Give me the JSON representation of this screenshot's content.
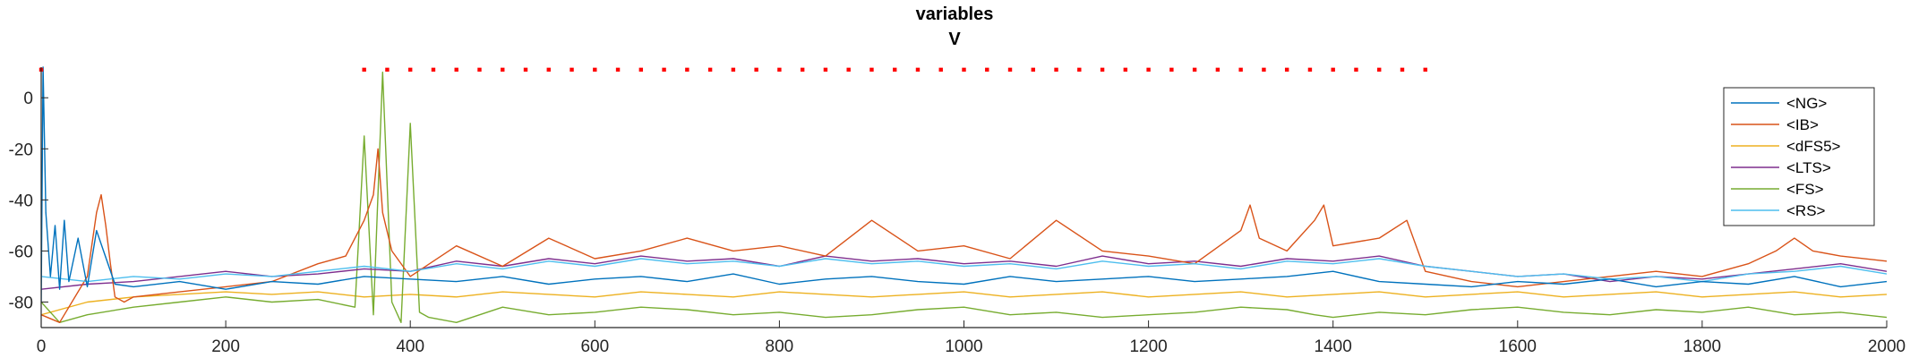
{
  "chart_data": {
    "type": "line",
    "title": "variables",
    "subtitle": "V",
    "xlabel": "",
    "ylabel": "",
    "xlim": [
      0,
      2000
    ],
    "ylim": [
      -90,
      12
    ],
    "xticks": [
      0,
      200,
      400,
      600,
      800,
      1000,
      1200,
      1400,
      1600,
      1800,
      2000
    ],
    "yticks": [
      0,
      -20,
      -40,
      -60,
      -80
    ],
    "grid": false,
    "legend_position": "top-right",
    "series": [
      {
        "name": "<NG>",
        "color": "#0072BD",
        "x": [
          0,
          2,
          5,
          10,
          15,
          20,
          25,
          30,
          40,
          50,
          60,
          80,
          100,
          150,
          200,
          250,
          300,
          350,
          400,
          450,
          500,
          550,
          600,
          650,
          700,
          750,
          800,
          850,
          900,
          950,
          1000,
          1050,
          1100,
          1150,
          1200,
          1250,
          1300,
          1350,
          1400,
          1450,
          1500,
          1550,
          1600,
          1650,
          1700,
          1750,
          1800,
          1850,
          1900,
          1950,
          2000
        ],
        "y": [
          -80,
          12,
          -45,
          -70,
          -50,
          -75,
          -48,
          -72,
          -55,
          -74,
          -52,
          -73,
          -74,
          -72,
          -75,
          -72,
          -73,
          -70,
          -71,
          -72,
          -70,
          -73,
          -71,
          -70,
          -72,
          -69,
          -73,
          -71,
          -70,
          -72,
          -73,
          -70,
          -72,
          -71,
          -70,
          -72,
          -71,
          -70,
          -68,
          -72,
          -73,
          -74,
          -72,
          -73,
          -71,
          -74,
          -72,
          -73,
          -70,
          -74,
          -72
        ],
        "spikes": []
      },
      {
        "name": "<IB>",
        "color": "#D95319",
        "x": [
          0,
          20,
          50,
          60,
          65,
          70,
          75,
          80,
          90,
          100,
          150,
          200,
          250,
          300,
          330,
          350,
          360,
          365,
          370,
          380,
          400,
          450,
          500,
          550,
          600,
          650,
          700,
          750,
          800,
          850,
          900,
          950,
          1000,
          1050,
          1100,
          1150,
          1200,
          1250,
          1300,
          1310,
          1320,
          1350,
          1380,
          1390,
          1400,
          1450,
          1480,
          1500,
          1550,
          1600,
          1650,
          1700,
          1750,
          1800,
          1850,
          1880,
          1900,
          1920,
          1950,
          2000
        ],
        "y": [
          -85,
          -88,
          -70,
          -45,
          -38,
          -50,
          -65,
          -78,
          -80,
          -78,
          -76,
          -74,
          -72,
          -65,
          -62,
          -48,
          -38,
          -20,
          -45,
          -60,
          -70,
          -58,
          -66,
          -55,
          -63,
          -60,
          -55,
          -60,
          -58,
          -62,
          -48,
          -60,
          -58,
          -63,
          -48,
          -60,
          -62,
          -65,
          -52,
          -42,
          -55,
          -60,
          -48,
          -42,
          -58,
          -55,
          -48,
          -68,
          -72,
          -74,
          -72,
          -70,
          -68,
          -70,
          -65,
          -60,
          -55,
          -60,
          -62,
          -64
        ],
        "spikes": []
      },
      {
        "name": "<dFS5>",
        "color": "#EDB120",
        "x": [
          0,
          50,
          100,
          150,
          200,
          250,
          300,
          350,
          400,
          450,
          500,
          550,
          600,
          650,
          700,
          750,
          800,
          850,
          900,
          950,
          1000,
          1050,
          1100,
          1150,
          1200,
          1250,
          1300,
          1350,
          1400,
          1450,
          1500,
          1550,
          1600,
          1650,
          1700,
          1750,
          1800,
          1850,
          1900,
          1950,
          2000
        ],
        "y": [
          -85,
          -80,
          -78,
          -77,
          -76,
          -77,
          -76,
          -78,
          -77,
          -78,
          -76,
          -77,
          -78,
          -76,
          -77,
          -78,
          -76,
          -77,
          -78,
          -77,
          -76,
          -78,
          -77,
          -76,
          -78,
          -77,
          -76,
          -78,
          -77,
          -76,
          -78,
          -77,
          -76,
          -78,
          -77,
          -76,
          -78,
          -77,
          -76,
          -78,
          -77
        ],
        "spikes": []
      },
      {
        "name": "<LTS>",
        "color": "#7E2F8E",
        "x": [
          0,
          50,
          100,
          150,
          200,
          250,
          300,
          350,
          400,
          450,
          500,
          550,
          600,
          650,
          700,
          750,
          800,
          850,
          900,
          950,
          1000,
          1050,
          1100,
          1150,
          1200,
          1250,
          1300,
          1350,
          1400,
          1450,
          1500,
          1550,
          1600,
          1650,
          1700,
          1750,
          1800,
          1850,
          1900,
          1950,
          2000
        ],
        "y": [
          -75,
          -73,
          -72,
          -70,
          -68,
          -70,
          -69,
          -67,
          -68,
          -64,
          -66,
          -63,
          -65,
          -62,
          -64,
          -63,
          -66,
          -62,
          -64,
          -63,
          -65,
          -64,
          -66,
          -62,
          -65,
          -64,
          -66,
          -63,
          -64,
          -62,
          -66,
          -68,
          -70,
          -69,
          -72,
          -70,
          -71,
          -69,
          -67,
          -65,
          -68
        ],
        "spikes": []
      },
      {
        "name": "<FS>",
        "color": "#77AC30",
        "x": [
          0,
          20,
          50,
          100,
          150,
          200,
          250,
          300,
          340,
          350,
          360,
          370,
          380,
          390,
          400,
          410,
          420,
          450,
          500,
          550,
          600,
          650,
          700,
          750,
          800,
          850,
          900,
          950,
          1000,
          1050,
          1100,
          1150,
          1200,
          1250,
          1300,
          1350,
          1380,
          1400,
          1450,
          1500,
          1550,
          1600,
          1650,
          1700,
          1750,
          1800,
          1850,
          1900,
          1950,
          2000
        ],
        "y": [
          -80,
          -88,
          -85,
          -82,
          -80,
          -78,
          -80,
          -79,
          -82,
          -15,
          -85,
          10,
          -80,
          -88,
          -10,
          -84,
          -86,
          -88,
          -82,
          -85,
          -84,
          -82,
          -83,
          -85,
          -84,
          -86,
          -85,
          -83,
          -82,
          -85,
          -84,
          -86,
          -85,
          -84,
          -82,
          -83,
          -85,
          -86,
          -84,
          -85,
          -83,
          -82,
          -84,
          -85,
          -83,
          -84,
          -82,
          -85,
          -84,
          -86
        ],
        "spikes": []
      },
      {
        "name": "<RS>",
        "color": "#4DBEEE",
        "x": [
          0,
          50,
          100,
          150,
          200,
          250,
          300,
          350,
          400,
          450,
          500,
          550,
          600,
          650,
          700,
          750,
          800,
          850,
          900,
          950,
          1000,
          1050,
          1100,
          1150,
          1200,
          1250,
          1300,
          1350,
          1400,
          1450,
          1500,
          1550,
          1600,
          1650,
          1700,
          1750,
          1800,
          1850,
          1900,
          1950,
          2000
        ],
        "y": [
          -70,
          -72,
          -70,
          -71,
          -69,
          -70,
          -68,
          -66,
          -68,
          -65,
          -67,
          -64,
          -66,
          -63,
          -65,
          -64,
          -66,
          -63,
          -65,
          -64,
          -66,
          -65,
          -67,
          -64,
          -66,
          -65,
          -67,
          -64,
          -65,
          -63,
          -66,
          -68,
          -70,
          -69,
          -71,
          -70,
          -72,
          -69,
          -68,
          -66,
          -69
        ],
        "spikes": []
      }
    ],
    "markers": {
      "color": "#FF0000",
      "y": 11,
      "x": [
        0,
        350,
        375,
        400,
        425,
        450,
        475,
        500,
        525,
        550,
        575,
        600,
        625,
        650,
        675,
        700,
        725,
        750,
        775,
        800,
        825,
        850,
        875,
        900,
        925,
        950,
        975,
        1000,
        1025,
        1050,
        1075,
        1100,
        1125,
        1150,
        1175,
        1200,
        1225,
        1250,
        1275,
        1300,
        1325,
        1350,
        1375,
        1400,
        1425,
        1450,
        1475,
        1500
      ]
    }
  }
}
